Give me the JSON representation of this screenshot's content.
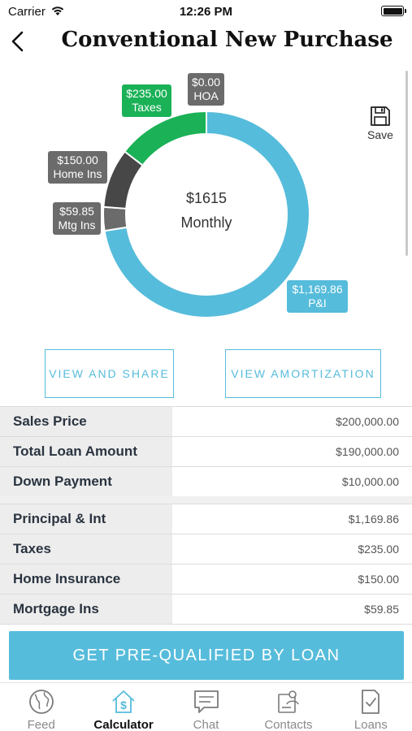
{
  "status_bar": {
    "carrier": "Carrier",
    "time": "12:26 PM"
  },
  "nav": {
    "title": "Conventional New Purchase"
  },
  "chart_data": {
    "type": "pie",
    "categories": [
      "P&I",
      "Mtg Ins",
      "Home Ins",
      "Taxes",
      "HOA"
    ],
    "values": [
      1169.86,
      59.85,
      150.0,
      235.0,
      0.0
    ],
    "value_labels": [
      "$1,169.86",
      "$59.85",
      "$150.00",
      "$235.00",
      "$0.00"
    ],
    "colors": [
      "#56bcdb",
      "#6b6b6b",
      "#474747",
      "#1ab157",
      "#7a7a7a"
    ],
    "center_amount": "$1615",
    "center_label": "Monthly",
    "style": "donut"
  },
  "save": {
    "label": "Save"
  },
  "buttons": {
    "view_share": "VIEW AND SHARE",
    "view_amortization": "VIEW AMORTIZATION"
  },
  "loan_summary": [
    {
      "label": "Sales Price",
      "value": "$200,000.00"
    },
    {
      "label": "Total Loan Amount",
      "value": "$190,000.00"
    },
    {
      "label": "Down Payment",
      "value": "$10,000.00"
    }
  ],
  "payment_breakdown": [
    {
      "label": "Principal & Int",
      "value": "$1,169.86"
    },
    {
      "label": "Taxes",
      "value": "$235.00"
    },
    {
      "label": "Home Insurance",
      "value": "$150.00"
    },
    {
      "label": "Mortgage Ins",
      "value": "$59.85"
    }
  ],
  "cta": {
    "label": "GET PRE-QUALIFIED BY LOAN"
  },
  "tab_bar": {
    "items": [
      {
        "label": "Feed",
        "icon": "globe-icon"
      },
      {
        "label": "Calculator",
        "icon": "home-dollar-icon"
      },
      {
        "label": "Chat",
        "icon": "chat-icon"
      },
      {
        "label": "Contacts",
        "icon": "contacts-icon"
      },
      {
        "label": "Loans",
        "icon": "document-check-icon"
      }
    ],
    "active": "Calculator"
  },
  "colors": {
    "accent": "#56bcdb",
    "green": "#1ab157",
    "gray": "#6b6b6b"
  }
}
